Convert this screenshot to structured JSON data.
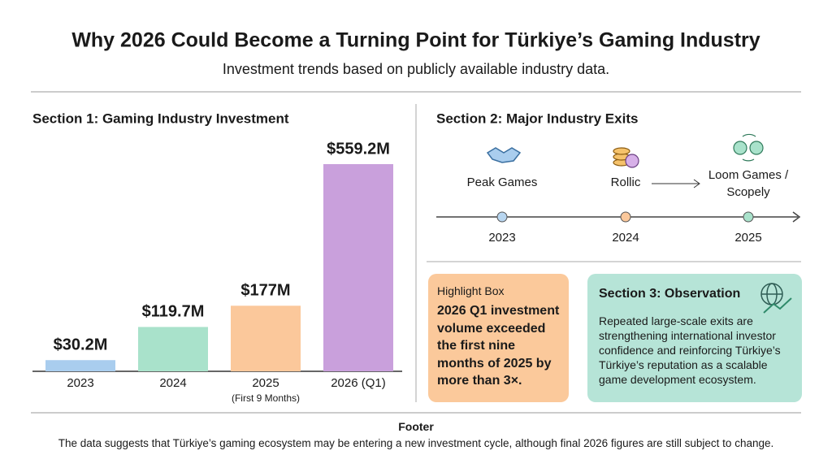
{
  "header": {
    "title": "Why 2026 Could Become a Turning Point for Türkiye’s Gaming Industry",
    "subtitle": "Investment trends based on publicly available industry data."
  },
  "chart_data": {
    "type": "bar",
    "title": "Section 1: Gaming Industry Investment",
    "categories": [
      "2023",
      "2024",
      "2025",
      "2026 (Q1)"
    ],
    "category_sublabels": [
      null,
      null,
      "(First 9 Months)",
      null
    ],
    "values": [
      30.2,
      119.7,
      177,
      559.2
    ],
    "value_labels": [
      "$30.2M",
      "$119.7M",
      "$177M",
      "$559.2M"
    ],
    "colors": [
      "#a9cdee",
      "#a9e2cb",
      "#fbc89b",
      "#c9a0dc"
    ]
  },
  "section2": {
    "title": "Section 2: Major Industry Exits",
    "events": [
      {
        "label": "Peak Games",
        "year": "2023"
      },
      {
        "label": "Rollic",
        "year": "2024"
      },
      {
        "label": "Loom Games / Scopely",
        "year": "2025"
      }
    ]
  },
  "highlight": {
    "title": "Highlight Box",
    "text": "2026 Q1 investment volume exceeded the first nine months of 2025 by more than 3×."
  },
  "section3": {
    "title": "Section 3: Observation",
    "text": "Repeated large-scale exits are strengthening international investor confidence and reinforcing Türkiye’s Türkiye’s reputation as a scalable game development ecosystem."
  },
  "footer": {
    "title": "Footer",
    "text": "The data suggests that Türkiye’s gaming ecosystem may be entering a new investment cycle, although final 2026 figures are still subject to change."
  }
}
